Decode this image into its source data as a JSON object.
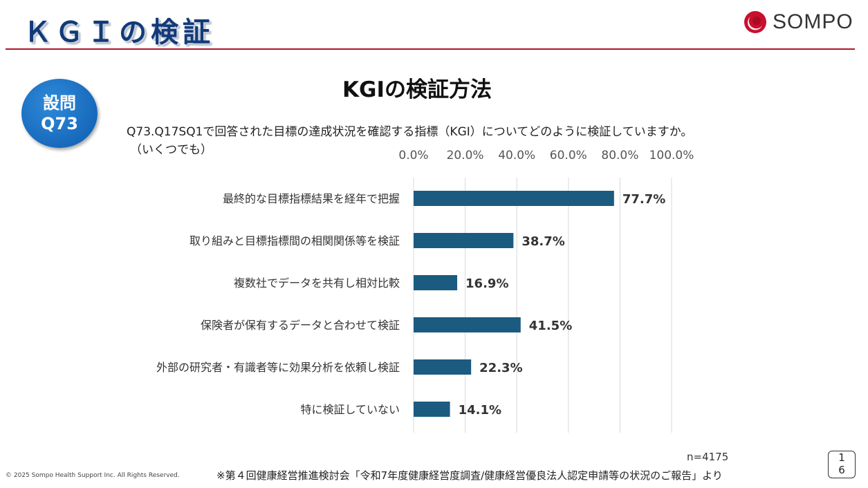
{
  "header": {
    "title": "ＫＧＩの検証",
    "logo_text": "SOMPO",
    "accent_color": "#b0152b"
  },
  "badge": {
    "line1": "設問",
    "line2": "Q73"
  },
  "question": {
    "text": "Q73.Q17SQ1で回答された目標の達成状況を確認する指標（KGI）についてどのように検証していますか。",
    "note": "（いくつでも）"
  },
  "chart_data": {
    "type": "bar",
    "orientation": "horizontal",
    "title": "KGIの検証方法",
    "categories": [
      "最終的な目標指標結果を経年で把握",
      "取り組みと目標指標間の相関関係等を検証",
      "複数社でデータを共有し相対比較",
      "保険者が保有するデータと合わせて検証",
      "外部の研究者・有識者等に効果分析を依頼し検証",
      "特に検証していない"
    ],
    "values": [
      77.7,
      38.7,
      16.9,
      41.5,
      22.3,
      14.1
    ],
    "value_labels": [
      "77.7%",
      "38.7%",
      "16.9%",
      "41.5%",
      "22.3%",
      "14.1%"
    ],
    "xlim": [
      0,
      100
    ],
    "ticks": [
      0,
      20,
      40,
      60,
      80,
      100
    ],
    "tick_labels": [
      "0.0%",
      "20.0%",
      "40.0%",
      "60.0%",
      "80.0%",
      "100.0%"
    ],
    "axis_position": "top",
    "grid": true,
    "bar_color": "#1b5b80",
    "n_label": "n=4175"
  },
  "footer": {
    "copyright": "© 2025 Sompo Health Support Inc. All Rights Reserved.",
    "source": "※第４回健康経営推進検討会「令和7年度健康経営度調査/健康経営優良法人認定申請等の状況のご報告」より",
    "page_digit1": "1",
    "page_digit2": "6"
  }
}
